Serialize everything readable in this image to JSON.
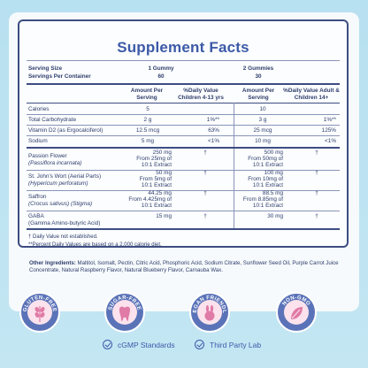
{
  "panel": {
    "title": "Supplement Facts",
    "serving_size_label": "Serving Size",
    "servings_per_container_label": "Servings Per Container",
    "col1_serving_size": "1 Gummy",
    "col1_servings": "60",
    "col2_serving_size": "2 Gummies",
    "col2_servings": "30",
    "amount_header": "Amount Per Serving",
    "dv_children_header": "%Daily Value Children 4-13 yrs",
    "dv_adult_header": "%Daily Value Adult & Children 14+"
  },
  "nutrients": [
    {
      "name": "Calories",
      "amt1": "5",
      "dv1": "",
      "amt2": "10",
      "dv2": ""
    },
    {
      "name": "Total Carbohydrate",
      "amt1": "2 g",
      "dv1": "1%**",
      "amt2": "3 g",
      "dv2": "1%**"
    },
    {
      "name": "Vitamin D2 (as Ergocalciferol)",
      "amt1": "12.5 mcg",
      "dv1": "63%",
      "amt2": "25 mcg",
      "dv2": "125%"
    },
    {
      "name": "Sodium",
      "amt1": "5 mg",
      "dv1": "<1%",
      "amt2": "10 mg",
      "dv2": "<1%"
    }
  ],
  "botanicals": [
    {
      "name": "Passion Flower",
      "latin": "(Passiflora incarnata)",
      "amt1": "250 mg",
      "sub1a": "From 25mg of",
      "sub1b": "10:1 Extract",
      "dv1": "†",
      "amt2": "500 mg",
      "sub2a": "From 50mg of",
      "sub2b": "10:1 Extract",
      "dv2": "†"
    },
    {
      "name": "St. John's Wort (Aerial Parts)",
      "latin": "(Hypericum perforatum)",
      "amt1": "50 mg",
      "sub1a": "From 5mg of",
      "sub1b": "10:1 Extract",
      "dv1": "†",
      "amt2": "100 mg",
      "sub2a": "From 10mg of",
      "sub2b": "10:1 Extract",
      "dv2": "†"
    },
    {
      "name": "Saffron",
      "latin": "(Crocus sativus) (Stigma)",
      "amt1": "44.25 mg",
      "sub1a": "From 4.425mg of",
      "sub1b": "10:1 Extract",
      "dv1": "†",
      "amt2": "88.5 mg",
      "sub2a": "From 8.85mg of",
      "sub2b": "10:1 Extract",
      "dv2": "†"
    },
    {
      "name": "GABA",
      "latin": "(Gamma Amino-butyric Acid)",
      "amt1": "15 mg",
      "sub1a": "",
      "sub1b": "",
      "dv1": "†",
      "amt2": "30 mg",
      "sub2a": "",
      "sub2b": "",
      "dv2": "†"
    }
  ],
  "footnotes": {
    "dagger": "† Daily Value not established.",
    "percent": "**Percent Daily Values are based on a 2,000 calorie diet."
  },
  "ingredients": {
    "label": "Other Ingredients:",
    "text": " Maltitol, Isomalt, Pectin, Citric Acid, Phosphoric Acid, Sodium Citrate, Sunflower Seed Oil, Purple Carrot Juice Concentrate, Natural Raspberry Flavor, Natural Blueberry Flavor, Carnauba Wax."
  },
  "badges": [
    {
      "label": "GLUTEN-FREE",
      "icon": "wheat-icon"
    },
    {
      "label": "SUGAR-FREE",
      "icon": "tooth-icon"
    },
    {
      "label": "VEGAN FRIENDLY",
      "icon": "bunny-icon"
    },
    {
      "label": "NON-GMO",
      "icon": "leaf-icon"
    }
  ],
  "footer": {
    "cgmp": "cGMP Standards",
    "third_party": "Third Party Lab"
  },
  "colors": {
    "background": "#b7e0f0",
    "navy": "#3d4d82",
    "title_blue": "#3d5aa8",
    "badge_purple": "#5a73b8",
    "badge_pink": "#fbe2ec"
  }
}
